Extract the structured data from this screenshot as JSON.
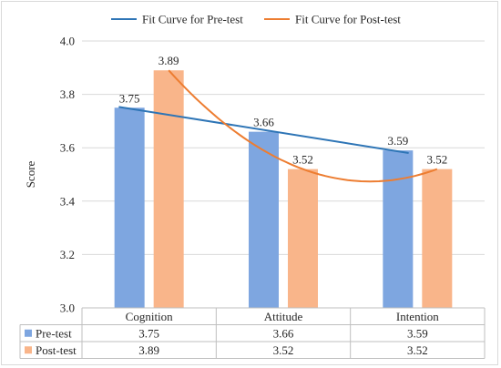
{
  "chart_data": {
    "type": "bar",
    "categories": [
      "Cognition",
      "Attitude",
      "Intention"
    ],
    "series": [
      {
        "name": "Pre-test",
        "values": [
          3.75,
          3.66,
          3.59
        ],
        "color": "#7ea6e0"
      },
      {
        "name": "Post-test",
        "values": [
          3.89,
          3.52,
          3.52
        ],
        "color": "#f9b58a"
      }
    ],
    "fit_curves": [
      {
        "name": "Fit Curve for Pre-test",
        "type": "linear",
        "color": "#2e75b6"
      },
      {
        "name": "Fit Curve for Post-test",
        "type": "polynomial",
        "color": "#ed7d31"
      }
    ],
    "data_labels": {
      "pre": [
        "3.75",
        "3.66",
        "3.59"
      ],
      "post": [
        "3.89",
        "3.52",
        "3.52"
      ]
    },
    "ylabel": "Score",
    "ylim": [
      3.0,
      4.0
    ],
    "yticks": [
      "3.0",
      "3.2",
      "3.4",
      "3.6",
      "3.8",
      "4.0"
    ],
    "ytick_values": [
      3.0,
      3.2,
      3.4,
      3.6,
      3.8,
      4.0
    ],
    "grid": true,
    "legend_position": "top",
    "data_table": true
  }
}
